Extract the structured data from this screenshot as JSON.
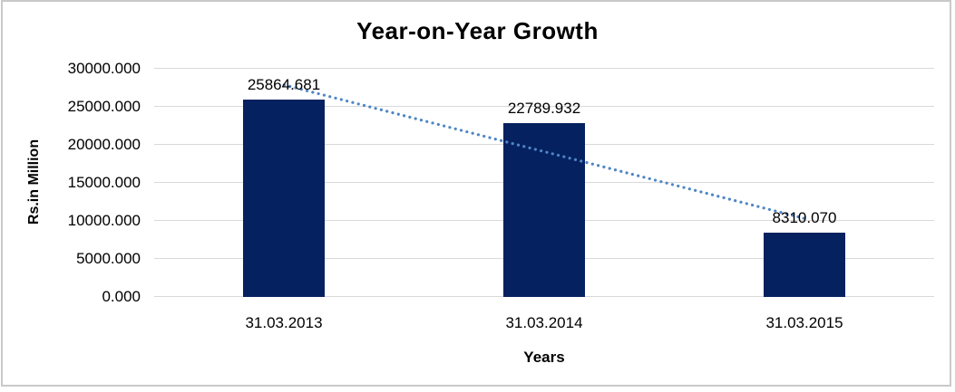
{
  "chart_data": {
    "type": "bar",
    "title": "Year-on-Year Growth",
    "xlabel": "Years",
    "ylabel": "Rs.in Million",
    "categories": [
      "31.03.2013",
      "31.03.2014",
      "31.03.2015"
    ],
    "values": [
      25864.681,
      22789.932,
      8310.07
    ],
    "value_labels": [
      "25864.681",
      "22789.932",
      "8310.070"
    ],
    "ylim": [
      0,
      30000
    ],
    "ytick_step": 5000,
    "ytick_labels": [
      "0.000",
      "5000.000",
      "10000.000",
      "15000.000",
      "20000.000",
      "25000.000",
      "30000.000"
    ],
    "grid": true,
    "legend": "none",
    "trendline": {
      "type": "linear",
      "style": "dotted"
    },
    "colors": {
      "bar": "#05215F",
      "trendline": "#4E86C6",
      "gridline": "#D9D9D9",
      "frame_border": "#C9C9C9",
      "text": "#000000"
    }
  }
}
